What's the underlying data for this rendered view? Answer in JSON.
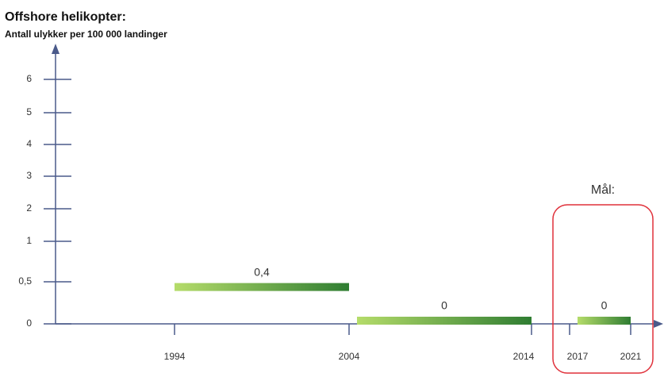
{
  "chart_data": {
    "type": "range_bar",
    "title": "Offshore helikopter:",
    "ylabel": "Antall ulykker per 100 000 landinger",
    "x_starts": [
      1994,
      2004,
      2017
    ],
    "x_ends": [
      2004,
      2014,
      2021
    ],
    "values": [
      0.4,
      0,
      0
    ],
    "value_labels": [
      "0,4",
      "0",
      "0"
    ],
    "colors": [
      "#b5dc6a",
      "#2f7d32"
    ],
    "xticks": [
      1994,
      2004,
      2014,
      2017,
      2021
    ],
    "yticks": [
      0,
      {
        "value": 0.5,
        "label": "0,5"
      },
      1,
      2,
      3,
      4,
      5,
      6
    ],
    "annotation": "Mål:",
    "annotation_color": "#e0303a"
  }
}
